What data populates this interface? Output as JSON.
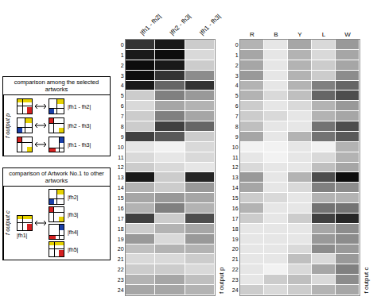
{
  "chart_data": [
    {
      "type": "heatmap",
      "x": [
        "|fh1 - fh2|",
        "|fh2 - fh3|",
        "|fh1 - fh3|"
      ],
      "categories": [
        "0",
        "1",
        "2",
        "3",
        "4",
        "5",
        "6",
        "7",
        "8",
        "9",
        "10",
        "11",
        "12",
        "13",
        "14",
        "15",
        "16",
        "17",
        "18",
        "19",
        "20",
        "21",
        "22",
        "23",
        "24"
      ],
      "label": "f output p",
      "zlim": [
        0,
        1
      ],
      "cells": [
        [
          0.8,
          0.9,
          0.2
        ],
        [
          0.9,
          0.95,
          0.15
        ],
        [
          0.95,
          0.9,
          0.2
        ],
        [
          0.95,
          0.8,
          0.45
        ],
        [
          0.9,
          0.6,
          0.8
        ],
        [
          0.2,
          0.5,
          0.4
        ],
        [
          0.15,
          0.35,
          0.3
        ],
        [
          0.2,
          0.5,
          0.35
        ],
        [
          0.2,
          0.75,
          0.6
        ],
        [
          0.75,
          0.65,
          0.2
        ],
        [
          0.1,
          0.05,
          0.15
        ],
        [
          0.15,
          0.1,
          0.15
        ],
        [
          0.2,
          0.15,
          0.1
        ],
        [
          0.9,
          0.2,
          0.85
        ],
        [
          0.3,
          0.2,
          0.4
        ],
        [
          0.35,
          0.4,
          0.35
        ],
        [
          0.3,
          0.5,
          0.3
        ],
        [
          0.75,
          0.2,
          0.7
        ],
        [
          0.2,
          0.3,
          0.35
        ],
        [
          0.4,
          0.15,
          0.4
        ],
        [
          0.25,
          0.3,
          0.3
        ],
        [
          0.15,
          0.15,
          0.2
        ],
        [
          0.2,
          0.2,
          0.15
        ],
        [
          0.3,
          0.35,
          0.25
        ],
        [
          0.35,
          0.35,
          0.3
        ]
      ]
    },
    {
      "type": "heatmap",
      "x": [
        "R",
        "B",
        "Y",
        "L",
        "W"
      ],
      "categories": [
        "0",
        "1",
        "2",
        "3",
        "4",
        "5",
        "6",
        "7",
        "8",
        "9",
        "10",
        "11",
        "12",
        "13",
        "14",
        "15",
        "16",
        "17",
        "18",
        "19",
        "20",
        "21",
        "22",
        "23",
        "24"
      ],
      "label": "f output c",
      "zlim": [
        0,
        1
      ],
      "cells": [
        [
          0.3,
          0.1,
          0.35,
          0.15,
          0.4
        ],
        [
          0.35,
          0.1,
          0.3,
          0.15,
          0.35
        ],
        [
          0.35,
          0.1,
          0.3,
          0.2,
          0.35
        ],
        [
          0.4,
          0.1,
          0.3,
          0.2,
          0.45
        ],
        [
          0.3,
          0.1,
          0.3,
          0.5,
          0.6
        ],
        [
          0.3,
          0.15,
          0.25,
          0.6,
          0.7
        ],
        [
          0.2,
          0.1,
          0.15,
          0.3,
          0.4
        ],
        [
          0.2,
          0.15,
          0.1,
          0.3,
          0.35
        ],
        [
          0.25,
          0.1,
          0.1,
          0.55,
          0.7
        ],
        [
          0.35,
          0.1,
          0.3,
          0.55,
          0.65
        ],
        [
          0.05,
          0.05,
          0.1,
          0.05,
          0.3
        ],
        [
          0.1,
          0.05,
          0.1,
          0.15,
          0.3
        ],
        [
          0.15,
          0.1,
          0.1,
          0.25,
          0.35
        ],
        [
          0.4,
          0.1,
          0.3,
          0.7,
          0.95
        ],
        [
          0.35,
          0.1,
          0.15,
          0.5,
          0.45
        ],
        [
          0.2,
          0.15,
          0.1,
          0.3,
          0.3
        ],
        [
          0.3,
          0.1,
          0.1,
          0.55,
          0.55
        ],
        [
          0.2,
          0.1,
          0.2,
          0.75,
          0.85
        ],
        [
          0.1,
          0.1,
          0.1,
          0.35,
          0.45
        ],
        [
          0.1,
          0.1,
          0.1,
          0.4,
          0.45
        ],
        [
          0.1,
          0.1,
          0.15,
          0.45,
          0.4
        ],
        [
          0.1,
          0.1,
          0.25,
          0.15,
          0.4
        ],
        [
          0.1,
          0.05,
          0.15,
          0.35,
          0.5
        ],
        [
          0.1,
          0.2,
          0.25,
          0.15,
          0.45
        ],
        [
          0.2,
          0.15,
          0.2,
          0.3,
          0.35
        ]
      ]
    }
  ],
  "diagram": {
    "box1": {
      "title": "comparison among the selected artworks",
      "label": "f output p",
      "rows": [
        "|fh1 - fh2|",
        "|fh2 - fh3|",
        "|fh1 - fh3|"
      ]
    },
    "box2": {
      "title": "comparison of Artwork No.1 to other artworks",
      "label": "f output c",
      "left": "|fh1|",
      "rows": [
        "|fh2|",
        "|fh3|",
        "|fh4|",
        "|fh5|"
      ]
    }
  }
}
